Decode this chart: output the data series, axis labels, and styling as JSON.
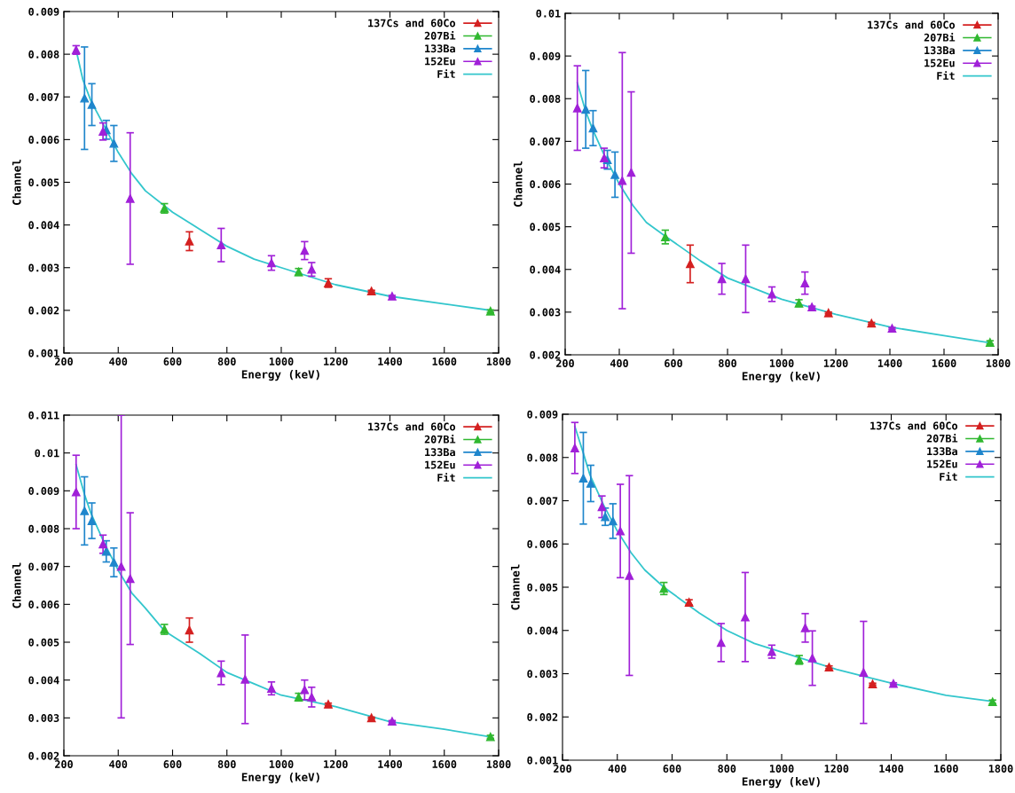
{
  "chart_data": [
    {
      "type": "scatter",
      "xlabel": "Energy (keV)",
      "ylabel": "Channel",
      "xlim": [
        200,
        1800
      ],
      "xticks": [
        200,
        400,
        600,
        800,
        1000,
        1200,
        1400,
        1600,
        1800
      ],
      "ylim": [
        0.001,
        0.009
      ],
      "yticks": [
        0.001,
        0.002,
        0.003,
        0.004,
        0.005,
        0.006,
        0.007,
        0.008,
        0.009
      ],
      "grid": false,
      "legend": "top right",
      "marker": "triangle",
      "series": [
        {
          "name": "137Cs and 60Co",
          "color": "#d42020",
          "x": [
            662,
            1173,
            1332
          ],
          "values": [
            0.00362,
            0.00264,
            0.00245
          ],
          "errors": [
            0.00022,
            0.0001,
            2e-05
          ]
        },
        {
          "name": "207Bi",
          "color": "#30b830",
          "x": [
            570,
            1064,
            1770
          ],
          "values": [
            0.00439,
            0.0029,
            0.00198
          ],
          "errors": [
            0.00011,
            8e-05,
            3e-05
          ]
        },
        {
          "name": "133Ba",
          "color": "#1f86cc",
          "x": [
            276,
            303,
            356,
            384
          ],
          "values": [
            0.00697,
            0.00682,
            0.00623,
            0.00591
          ],
          "errors": [
            0.0012,
            0.00049,
            0.00022,
            0.00042
          ]
        },
        {
          "name": "152Eu",
          "color": "#a020d8",
          "x": [
            245,
            344,
            444,
            779,
            964,
            1086,
            1112,
            1408
          ],
          "values": [
            0.0081,
            0.00619,
            0.00462,
            0.00353,
            0.00311,
            0.0034,
            0.00296,
            0.00233
          ],
          "errors": [
            0.0001,
            0.0002,
            0.00154,
            0.00039,
            0.00017,
            0.00021,
            0.00016,
            2e-05
          ]
        },
        {
          "name": "Fit",
          "type": "line",
          "color": "#33c6cc",
          "marker": "none",
          "x": [
            245,
            270,
            300,
            350,
            400,
            450,
            500,
            600,
            700,
            800,
            900,
            1000,
            1200,
            1400,
            1600,
            1770
          ],
          "values": [
            0.0081,
            0.0074,
            0.0069,
            0.0063,
            0.0057,
            0.0052,
            0.0048,
            0.0043,
            0.0039,
            0.0035,
            0.0032,
            0.003,
            0.0026,
            0.00233,
            0.00215,
            0.002
          ]
        }
      ]
    },
    {
      "type": "scatter",
      "xlabel": "Energy (keV)",
      "ylabel": "Channel",
      "xlim": [
        200,
        1800
      ],
      "xticks": [
        200,
        400,
        600,
        800,
        1000,
        1200,
        1400,
        1600,
        1800
      ],
      "ylim": [
        0.002,
        0.01
      ],
      "yticks": [
        0.002,
        0.003,
        0.004,
        0.005,
        0.006,
        0.007,
        0.008,
        0.009,
        0.01
      ],
      "grid": false,
      "legend": "top right",
      "marker": "triangle",
      "series": [
        {
          "name": "137Cs and 60Co",
          "color": "#d42020",
          "x": [
            662,
            1173,
            1332
          ],
          "values": [
            0.00413,
            0.00298,
            0.00274
          ],
          "errors": [
            0.00044,
            2e-05,
            2e-05
          ]
        },
        {
          "name": "207Bi",
          "color": "#30b830",
          "x": [
            570,
            1064,
            1770
          ],
          "values": [
            0.00476,
            0.00321,
            0.00229
          ],
          "errors": [
            0.00016,
            8e-05,
            4e-05
          ]
        },
        {
          "name": "133Ba",
          "color": "#1f86cc",
          "x": [
            276,
            303,
            356,
            384
          ],
          "values": [
            0.00775,
            0.00731,
            0.00657,
            0.00622
          ],
          "errors": [
            0.00091,
            0.00041,
            0.00022,
            0.00053
          ]
        },
        {
          "name": "152Eu",
          "color": "#a020d8",
          "x": [
            245,
            344,
            411,
            444,
            779,
            867,
            964,
            1086,
            1112,
            1408
          ],
          "values": [
            0.00778,
            0.00661,
            0.00608,
            0.00627,
            0.00378,
            0.00378,
            0.00342,
            0.00368,
            0.00312,
            0.00262
          ],
          "errors": [
            0.00099,
            0.00023,
            0.003,
            0.00189,
            0.00036,
            0.00079,
            0.00017,
            0.00026,
            2e-05,
            2e-05
          ]
        },
        {
          "name": "Fit",
          "type": "line",
          "color": "#33c6cc",
          "marker": "none",
          "x": [
            245,
            276,
            300,
            350,
            400,
            450,
            500,
            570,
            700,
            800,
            1000,
            1200,
            1400,
            1600,
            1770
          ],
          "values": [
            0.00837,
            0.0077,
            0.0073,
            0.0066,
            0.006,
            0.0055,
            0.0051,
            0.00478,
            0.0042,
            0.0038,
            0.0033,
            0.00295,
            0.00265,
            0.00245,
            0.00228
          ]
        }
      ]
    },
    {
      "type": "scatter",
      "xlabel": "Energy (keV)",
      "ylabel": "Channel",
      "xlim": [
        200,
        1800
      ],
      "xticks": [
        200,
        400,
        600,
        800,
        1000,
        1200,
        1400,
        1600,
        1800
      ],
      "ylim": [
        0.002,
        0.011
      ],
      "yticks": [
        0.002,
        0.003,
        0.004,
        0.005,
        0.006,
        0.007,
        0.008,
        0.009,
        0.01,
        0.011
      ],
      "grid": false,
      "legend": "top right",
      "marker": "triangle",
      "series": [
        {
          "name": "137Cs and 60Co",
          "color": "#d42020",
          "x": [
            662,
            1173,
            1332
          ],
          "values": [
            0.00532,
            0.00336,
            0.003
          ],
          "errors": [
            0.00032,
            3e-05,
            2e-05
          ]
        },
        {
          "name": "207Bi",
          "color": "#30b830",
          "x": [
            570,
            1064,
            1770
          ],
          "values": [
            0.00534,
            0.00355,
            0.0025
          ],
          "errors": [
            0.00013,
            0.0001,
            4e-05
          ]
        },
        {
          "name": "133Ba",
          "color": "#1f86cc",
          "x": [
            276,
            303,
            356,
            384
          ],
          "values": [
            0.00847,
            0.00821,
            0.0074,
            0.00711
          ],
          "errors": [
            0.0009,
            0.00047,
            0.00028,
            0.00038
          ]
        },
        {
          "name": "152Eu",
          "color": "#a020d8",
          "x": [
            245,
            344,
            411,
            444,
            779,
            867,
            964,
            1086,
            1112,
            1408
          ],
          "values": [
            0.00897,
            0.00759,
            0.007,
            0.00668,
            0.00419,
            0.00402,
            0.00378,
            0.00374,
            0.00355,
            0.00291
          ],
          "errors": [
            0.00097,
            0.00024,
            0.004,
            0.00174,
            0.00031,
            0.00117,
            0.00017,
            0.00026,
            0.00026,
            2e-05
          ]
        },
        {
          "name": "Fit",
          "type": "line",
          "color": "#33c6cc",
          "marker": "none",
          "x": [
            245,
            276,
            300,
            350,
            400,
            450,
            500,
            570,
            700,
            800,
            900,
            1000,
            1200,
            1400,
            1600,
            1770
          ],
          "values": [
            0.00969,
            0.0089,
            0.0084,
            0.0076,
            0.0069,
            0.0063,
            0.0059,
            0.0053,
            0.0047,
            0.0042,
            0.0039,
            0.0036,
            0.0033,
            0.0029,
            0.0027,
            0.0025
          ]
        }
      ]
    },
    {
      "type": "scatter",
      "xlabel": "Energy (keV)",
      "ylabel": "Channel",
      "xlim": [
        200,
        1800
      ],
      "xticks": [
        200,
        400,
        600,
        800,
        1000,
        1200,
        1400,
        1600,
        1800
      ],
      "ylim": [
        0.001,
        0.009
      ],
      "yticks": [
        0.001,
        0.002,
        0.003,
        0.004,
        0.005,
        0.006,
        0.007,
        0.008,
        0.009
      ],
      "grid": false,
      "legend": "top right",
      "marker": "triangle",
      "series": [
        {
          "name": "137Cs and 60Co",
          "color": "#d42020",
          "x": [
            662,
            1173,
            1332
          ],
          "values": [
            0.00465,
            0.00315,
            0.00276
          ],
          "errors": [
            6e-05,
            3e-05,
            2e-05
          ]
        },
        {
          "name": "207Bi",
          "color": "#30b830",
          "x": [
            570,
            1064,
            1770
          ],
          "values": [
            0.00497,
            0.00332,
            0.00235
          ],
          "errors": [
            0.00014,
            0.0001,
            4e-05
          ]
        },
        {
          "name": "133Ba",
          "color": "#1f86cc",
          "x": [
            276,
            303,
            356,
            384
          ],
          "values": [
            0.00752,
            0.0074,
            0.00663,
            0.00653
          ],
          "errors": [
            0.00106,
            0.00042,
            0.0002,
            0.0004
          ]
        },
        {
          "name": "152Eu",
          "color": "#a020d8",
          "x": [
            245,
            344,
            411,
            444,
            779,
            867,
            964,
            1086,
            1112,
            1299,
            1408
          ],
          "values": [
            0.00822,
            0.00686,
            0.0063,
            0.00527,
            0.00372,
            0.00431,
            0.00351,
            0.00406,
            0.00336,
            0.00303,
            0.00277
          ],
          "errors": [
            0.00059,
            0.00025,
            0.00108,
            0.00231,
            0.00044,
            0.00103,
            0.00015,
            0.00033,
            0.00063,
            0.00118,
            2e-05
          ]
        },
        {
          "name": "Fit",
          "type": "line",
          "color": "#33c6cc",
          "marker": "none",
          "x": [
            245,
            276,
            300,
            350,
            400,
            450,
            500,
            570,
            700,
            800,
            900,
            1000,
            1200,
            1400,
            1600,
            1770
          ],
          "values": [
            0.00872,
            0.0081,
            0.0076,
            0.0069,
            0.0063,
            0.0058,
            0.0054,
            0.005,
            0.0044,
            0.004,
            0.0037,
            0.0035,
            0.0031,
            0.00278,
            0.0025,
            0.00236
          ]
        }
      ]
    }
  ]
}
